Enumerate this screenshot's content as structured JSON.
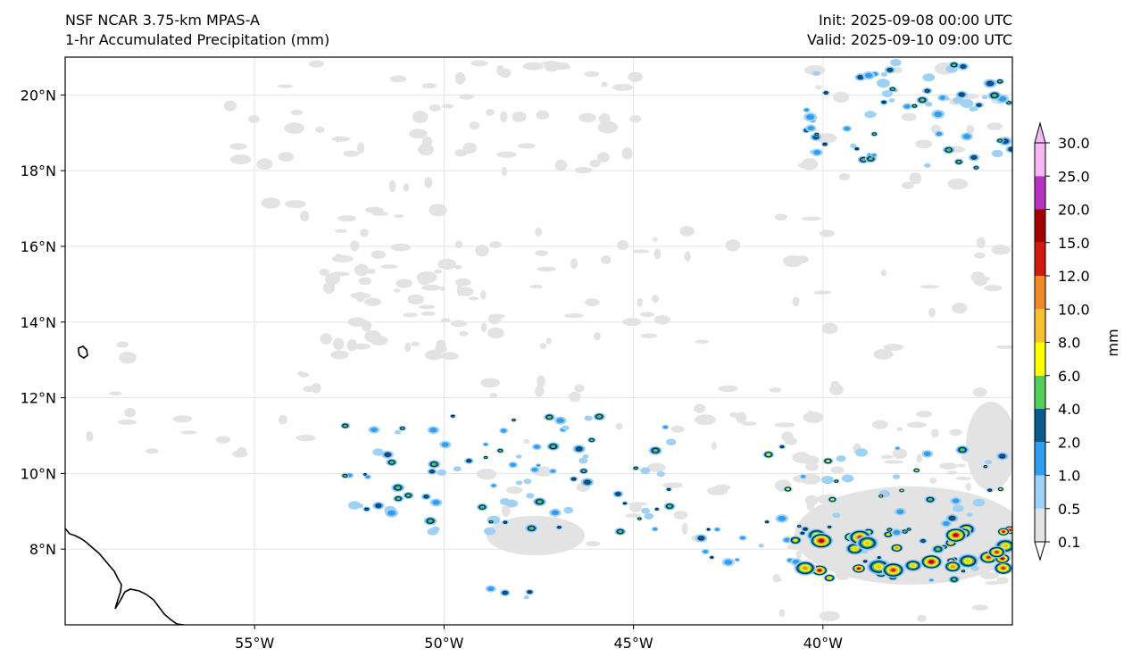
{
  "header": {
    "model": "NSF NCAR 3.75-km MPAS-A",
    "field": "1-hr Accumulated Precipitation (mm)",
    "init": "Init: 2025-09-08 00:00 UTC",
    "valid": "Valid: 2025-09-10 09:00 UTC"
  },
  "axes": {
    "lat_labels": [
      "20°N",
      "18°N",
      "16°N",
      "14°N",
      "12°N",
      "10°N",
      "8°N"
    ],
    "lon_labels": [
      "55°W",
      "50°W",
      "45°W",
      "40°W"
    ],
    "lat_values": [
      20,
      18,
      16,
      14,
      12,
      10,
      8
    ],
    "lon_values": [
      -55,
      -50,
      -45,
      -40
    ],
    "extent": {
      "lon_min": -60,
      "lon_max": -35,
      "lat_min": 6,
      "lat_max": 21
    }
  },
  "colorbar": {
    "unit": "mm",
    "levels": [
      "0.1",
      "0.5",
      "1.0",
      "2.0",
      "4.0",
      "6.0",
      "8.0",
      "10.0",
      "12.0",
      "15.0",
      "20.0",
      "25.0",
      "30.0"
    ],
    "colors": [
      "#e3e3e3",
      "#9fd0f5",
      "#2f9ef0",
      "#0b5a8c",
      "#54cf5a",
      "#ffff00",
      "#f7c030",
      "#f08a25",
      "#d11a12",
      "#a00000",
      "#b832c0",
      "#f5b8f0"
    ]
  },
  "colors": {
    "outline": "#000000",
    "grid": "#e6e6e6",
    "coast": "#000000"
  }
}
